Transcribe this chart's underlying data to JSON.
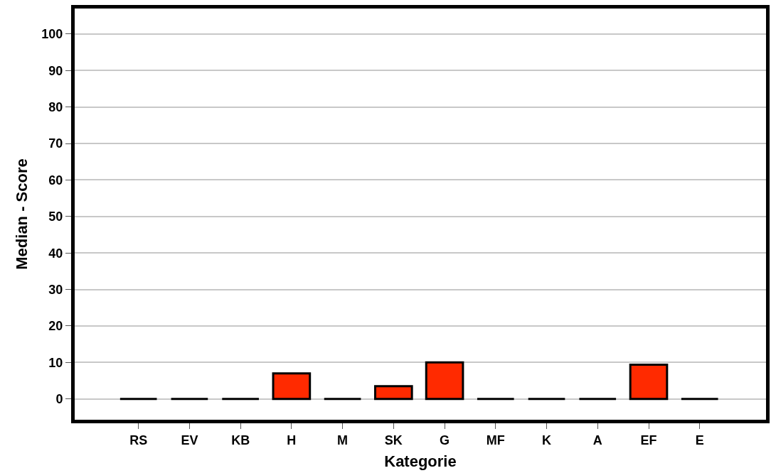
{
  "chart_data": {
    "type": "bar",
    "xlabel": "Kategorie",
    "ylabel": "Median - Score",
    "categories": [
      "RS",
      "EV",
      "KB",
      "H",
      "M",
      "SK",
      "G",
      "MF",
      "K",
      "A",
      "EF",
      "E"
    ],
    "values": [
      0,
      0,
      0,
      7,
      0,
      3.5,
      10,
      0,
      0,
      0,
      9.4,
      0
    ],
    "colors": [
      "#000000",
      "#000000",
      "#000000",
      "#ff2a00",
      "#000000",
      "#ff2a00",
      "#ff2a00",
      "#000000",
      "#000000",
      "#000000",
      "#ff2a00",
      "#000000"
    ],
    "ylim": [
      -5.7,
      107
    ],
    "yticks": [
      0,
      10,
      20,
      30,
      40,
      50,
      60,
      70,
      80,
      90,
      100
    ],
    "grid": "y"
  }
}
